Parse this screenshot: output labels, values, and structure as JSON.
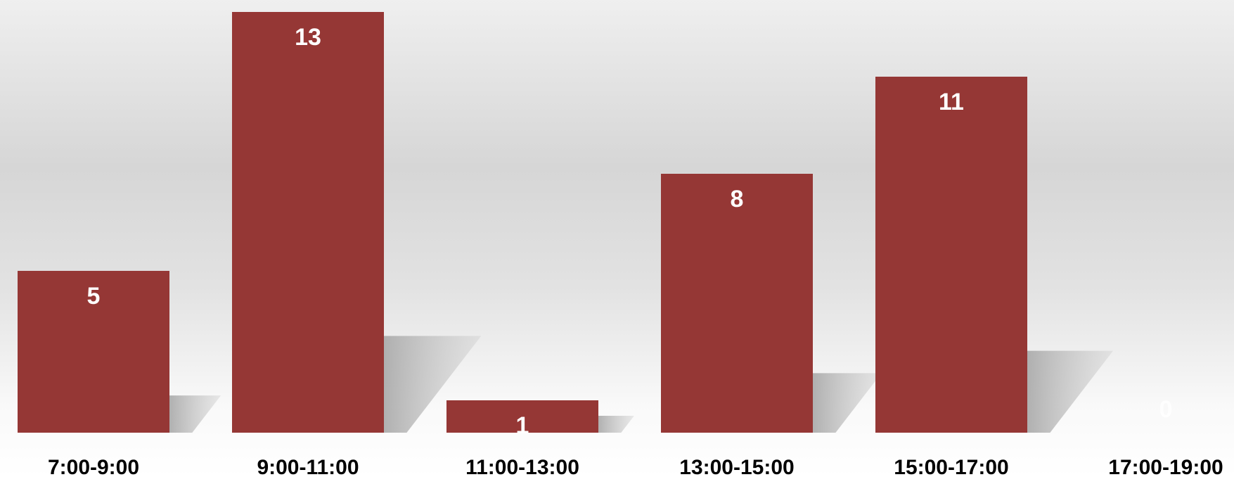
{
  "chart_data": {
    "type": "bar",
    "categories": [
      "7:00-9:00",
      "9:00-11:00",
      "11:00-13:00",
      "13:00-15:00",
      "15:00-17:00",
      "17:00-19:00"
    ],
    "values": [
      5,
      13,
      1,
      8,
      11,
      0
    ],
    "title": "",
    "xlabel": "",
    "ylabel": "",
    "ylim": [
      0,
      13
    ],
    "grid": false,
    "legend": "none",
    "colors": {
      "bar": "#953735",
      "data_label": "#ffffff",
      "tick_label": "#000000",
      "shadow": "#b4b4b4"
    }
  }
}
